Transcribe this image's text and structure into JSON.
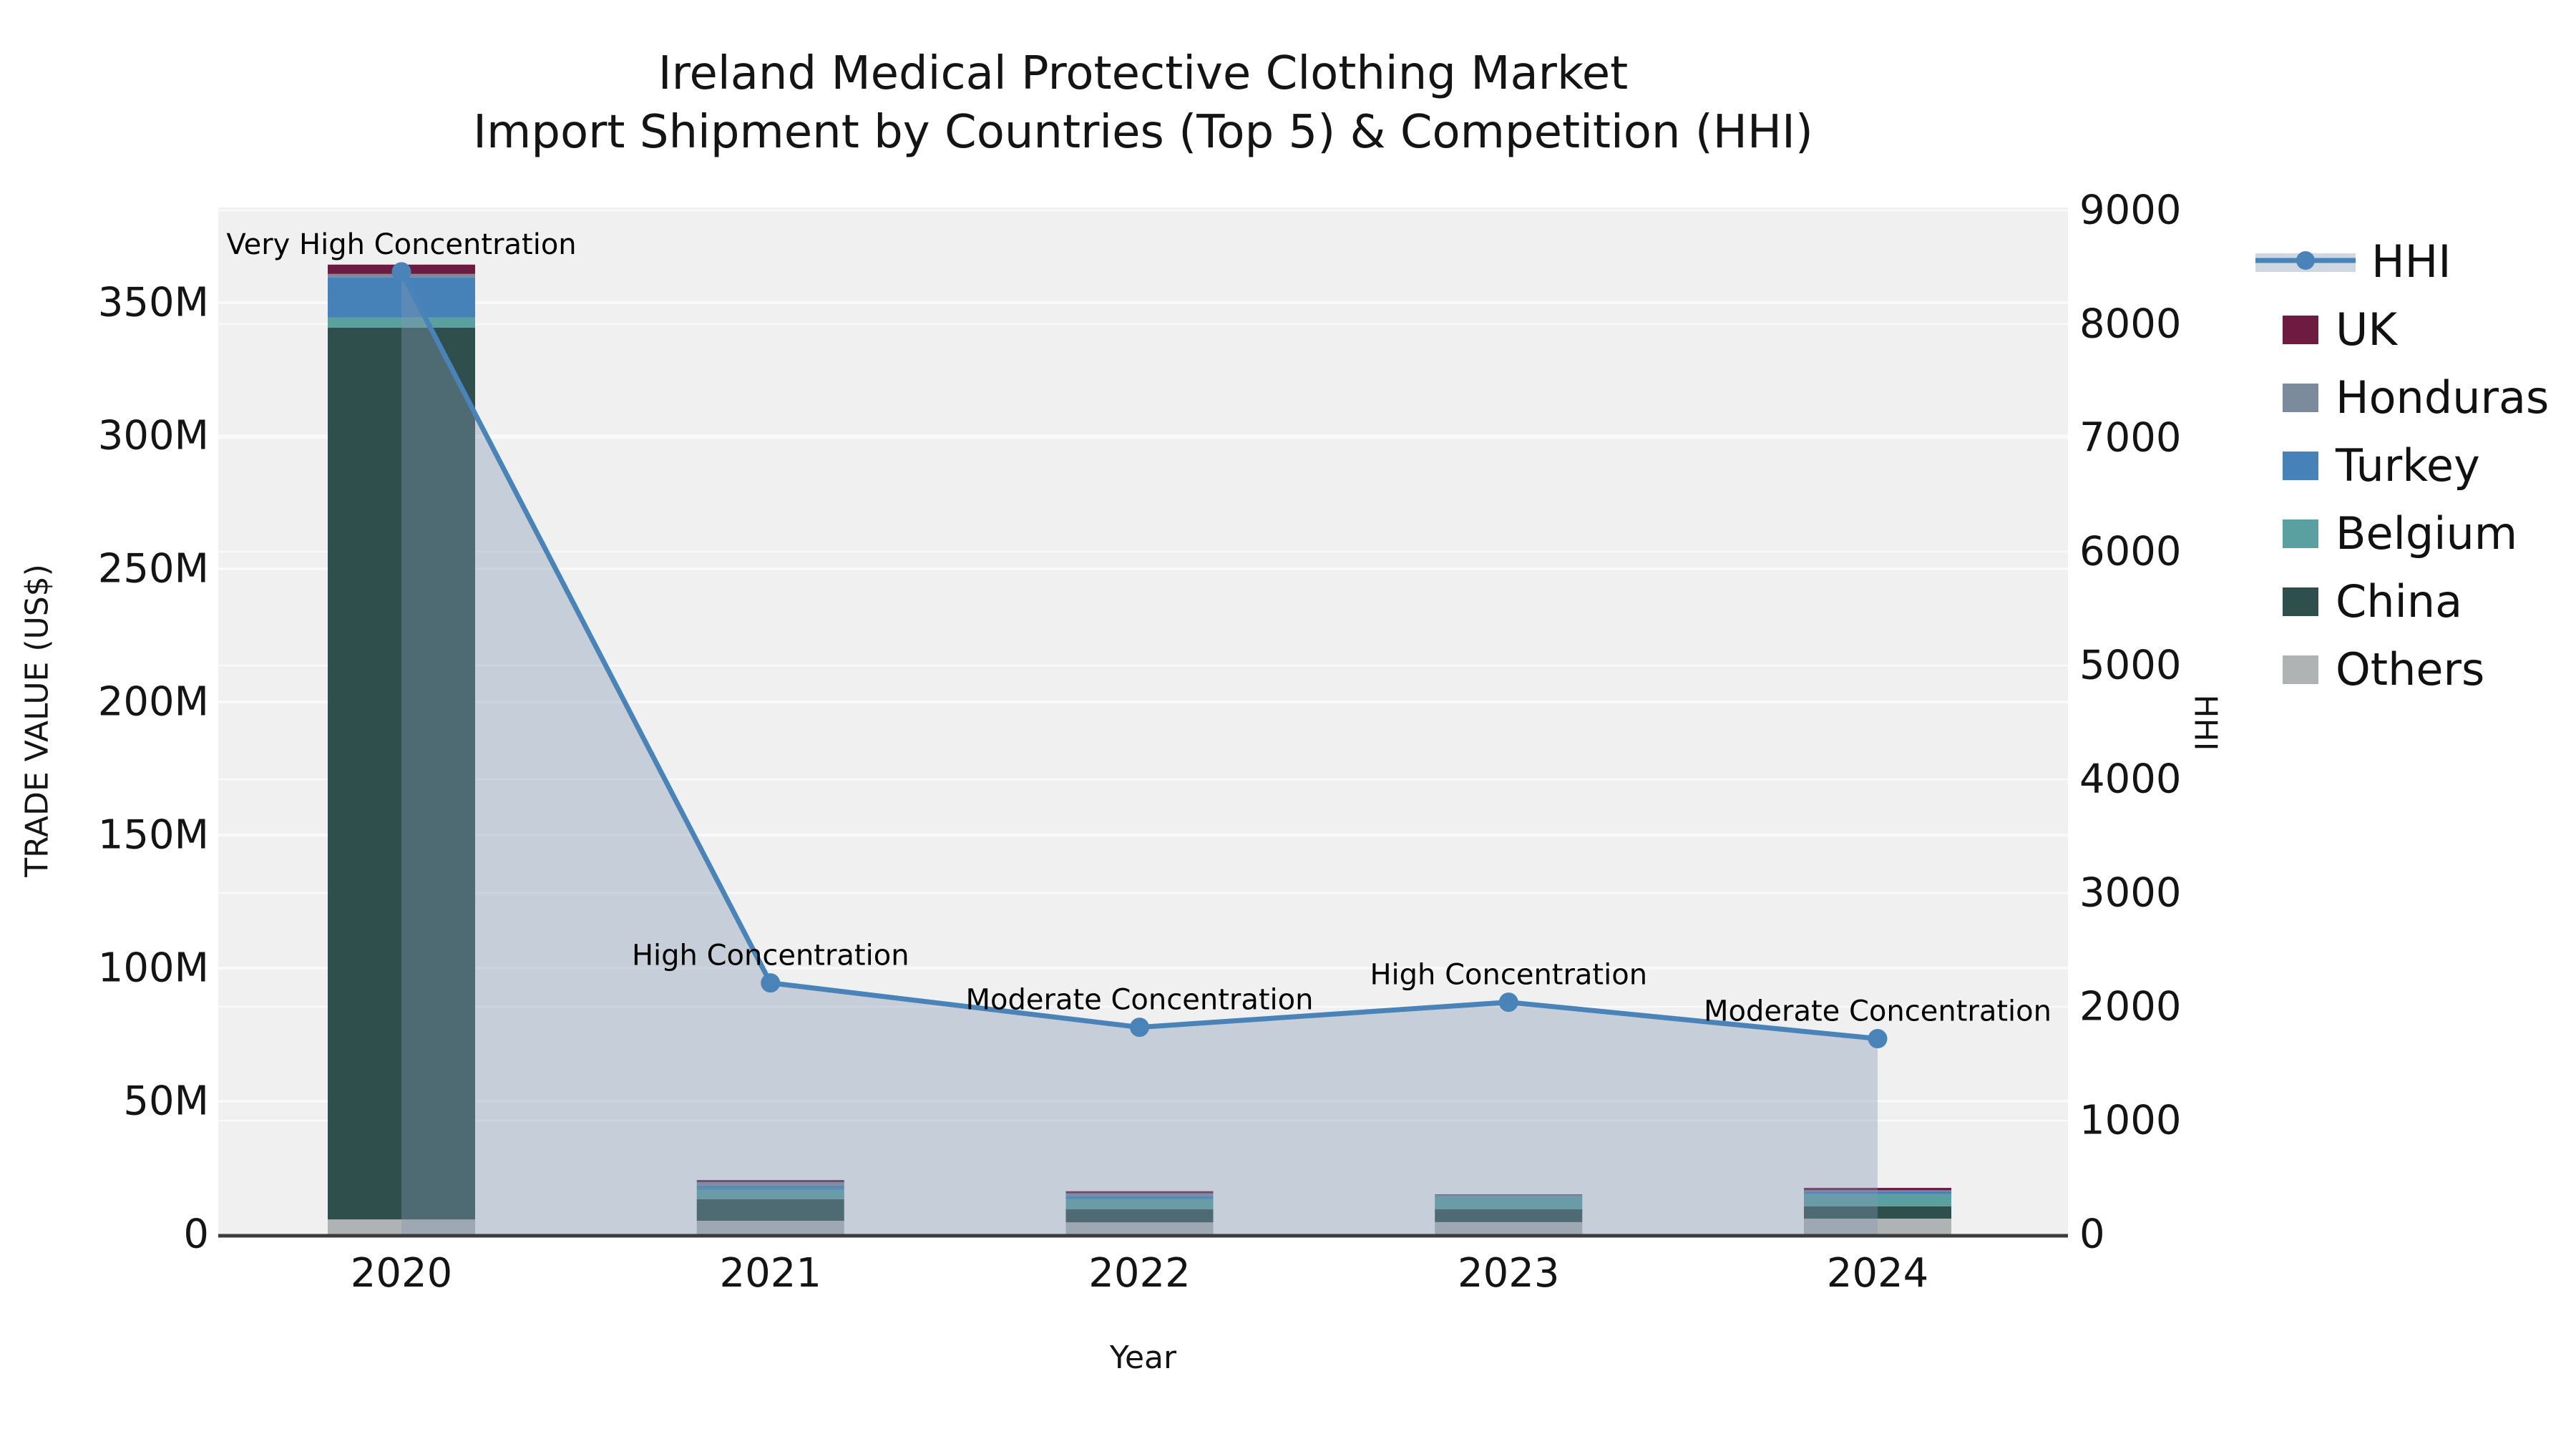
{
  "title": {
    "line1": "Ireland Medical Protective Clothing Market",
    "line2": "Import Shipment by Countries (Top 5) & Competition (HHI)"
  },
  "axes": {
    "x_label": "Year",
    "y_left_label": "TRADE VALUE (US$)",
    "y_right_label": "HHI"
  },
  "legend": {
    "items": [
      {
        "label": "HHI",
        "swatch": "line",
        "color_key": "hhi_line"
      },
      {
        "label": "UK",
        "swatch": "box",
        "color_key": "UK"
      },
      {
        "label": "Honduras",
        "swatch": "box",
        "color_key": "Honduras"
      },
      {
        "label": "Turkey",
        "swatch": "box",
        "color_key": "Turkey"
      },
      {
        "label": "Belgium",
        "swatch": "box",
        "color_key": "Belgium"
      },
      {
        "label": "China",
        "swatch": "box",
        "color_key": "China"
      },
      {
        "label": "Others",
        "swatch": "box",
        "color_key": "Others"
      }
    ]
  },
  "colors": {
    "plot_bg": "#f0f0f0",
    "grid": "#fafafa",
    "axis_line": "#3c3c3c",
    "text": "#141414",
    "hhi_line": "#4a83b8",
    "hhi_fill": "rgba(130,150,180,0.38)",
    "UK": "#6e1b41",
    "Honduras": "#7b8a9c",
    "Turkey": "#4681b8",
    "Belgium": "#5ba0a0",
    "China": "#2f4f4c",
    "Others": "#b0b3b3"
  },
  "chart_data": {
    "type": "bar+line",
    "title": "Ireland Medical Protective Clothing Market — Import Shipment by Countries (Top 5) & Competition (HHI)",
    "categories": [
      "2020",
      "2021",
      "2022",
      "2023",
      "2024"
    ],
    "bar_unit": "million US$",
    "bar_stack_order_bottom_to_top": [
      "Others",
      "China",
      "Belgium",
      "Turkey",
      "Honduras",
      "UK"
    ],
    "bar_series": [
      {
        "name": "Others",
        "color_key": "Others",
        "values": [
          5.6,
          5.1,
          4.5,
          4.6,
          5.9
        ]
      },
      {
        "name": "China",
        "color_key": "China",
        "values": [
          335.0,
          8.1,
          4.9,
          4.8,
          4.6
        ]
      },
      {
        "name": "Belgium",
        "color_key": "Belgium",
        "values": [
          3.8,
          3.5,
          3.8,
          4.8,
          4.6
        ]
      },
      {
        "name": "Turkey",
        "color_key": "Turkey",
        "values": [
          15.1,
          1.6,
          1.2,
          0.3,
          1.1
        ]
      },
      {
        "name": "Honduras",
        "color_key": "Honduras",
        "values": [
          1.3,
          1.3,
          1.0,
          0.25,
          0.35
        ]
      },
      {
        "name": "UK",
        "color_key": "UK",
        "values": [
          3.5,
          0.8,
          0.8,
          0.25,
          0.9
        ]
      }
    ],
    "bar_totals_approx": [
      364.3,
      20.4,
      16.2,
      15.0,
      17.4
    ],
    "line_series": {
      "name": "HHI",
      "axis": "right",
      "values": [
        8460,
        2210,
        1820,
        2040,
        1720
      ],
      "area_fill": true
    },
    "annotations": [
      {
        "category": "2020",
        "text": "Very High Concentration"
      },
      {
        "category": "2021",
        "text": "High Concentration"
      },
      {
        "category": "2022",
        "text": "Moderate Concentration"
      },
      {
        "category": "2023",
        "text": "High Concentration"
      },
      {
        "category": "2024",
        "text": "Moderate Concentration"
      }
    ],
    "xlabel": "Year",
    "ylabel_left": "TRADE VALUE (US$)",
    "ylabel_right": "HHI",
    "y_left_ticks": [
      0,
      50,
      100,
      150,
      200,
      250,
      300,
      350
    ],
    "y_left_tick_labels": [
      "0",
      "50M",
      "100M",
      "150M",
      "200M",
      "250M",
      "300M",
      "350M"
    ],
    "y_right_ticks": [
      0,
      1000,
      2000,
      3000,
      4000,
      5000,
      6000,
      7000,
      8000,
      9000
    ],
    "y_right_tick_labels": [
      "0",
      "1000",
      "2000",
      "3000",
      "4000",
      "5000",
      "6000",
      "7000",
      "8000",
      "9000"
    ],
    "ylim_left_M": [
      0,
      385
    ],
    "ylim_right": [
      0,
      9028
    ],
    "grid": true,
    "legend_position": "right-outside"
  }
}
